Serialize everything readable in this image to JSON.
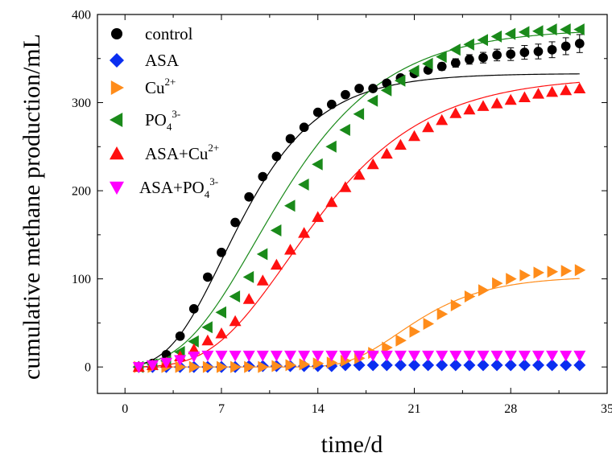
{
  "chart_data": {
    "type": "scatter",
    "xlabel": "time/d",
    "ylabel": "cumulative methane production/mL",
    "xlim": [
      -2,
      35
    ],
    "ylim": [
      -30,
      400
    ],
    "xticks": [
      "0",
      "7",
      "14",
      "21",
      "28",
      "35"
    ],
    "yticks": [
      "0",
      "100",
      "200",
      "300",
      "400"
    ],
    "legend_position": "top-left",
    "x": [
      1,
      2,
      3,
      4,
      5,
      6,
      7,
      8,
      9,
      10,
      11,
      12,
      13,
      14,
      15,
      16,
      17,
      18,
      19,
      20,
      21,
      22,
      23,
      24,
      25,
      26,
      27,
      28,
      29,
      30,
      31,
      32,
      33
    ],
    "series": [
      {
        "name": "control",
        "legend_main": "control",
        "legend_sup": "",
        "legend_sub": "",
        "marker": "circle",
        "color": "#000000",
        "values": [
          0,
          4,
          14,
          35,
          66,
          102,
          130,
          164,
          193,
          216,
          239,
          259,
          272,
          289,
          298,
          309,
          316,
          316,
          322,
          328,
          333,
          337,
          341,
          345,
          349,
          351,
          354,
          355,
          357,
          358,
          360,
          364,
          367
        ],
        "fit": {
          "a": 333,
          "mu": 31.8,
          "lambda": 3.2
        }
      },
      {
        "name": "ASA",
        "legend_main": "ASA",
        "legend_sup": "",
        "legend_sub": "",
        "marker": "diamond",
        "color": "#0a2ef0",
        "values": [
          0,
          0,
          0,
          0,
          0,
          0,
          0,
          0,
          1,
          1,
          1,
          1,
          1,
          1,
          1,
          2,
          2,
          2,
          2,
          2,
          2,
          2,
          2,
          2,
          2,
          2,
          2,
          2,
          2,
          2,
          2,
          2,
          2
        ]
      },
      {
        "name": "Cu2+",
        "legend_main": "Cu",
        "legend_sup": "2+",
        "legend_sub": "",
        "marker": "triangle-right",
        "color": "#ff8c1a",
        "values": [
          0,
          0,
          0,
          0,
          0,
          0,
          0,
          0,
          0,
          0,
          1,
          2,
          3,
          4,
          5,
          7,
          10,
          16,
          22,
          30,
          40,
          49,
          60,
          70,
          80,
          87,
          95,
          100,
          104,
          107,
          108,
          109,
          110
        ],
        "fit": {
          "a": 103,
          "mu": 10.5,
          "lambda": 16.2
        }
      },
      {
        "name": "PO43-",
        "legend_main": "PO",
        "legend_sup": "3-",
        "legend_sub": "4",
        "marker": "triangle-left",
        "color": "#1a8a1a",
        "values": [
          0,
          3,
          7,
          17,
          29,
          45,
          62,
          80,
          102,
          128,
          155,
          183,
          207,
          230,
          250,
          269,
          287,
          302,
          314,
          325,
          336,
          344,
          352,
          360,
          366,
          371,
          375,
          378,
          380,
          381,
          383,
          383,
          383
        ],
        "fit": {
          "a": 384,
          "mu": 27,
          "lambda": 4.2
        }
      },
      {
        "name": "ASA+Cu2+",
        "legend_main": "ASA+Cu",
        "legend_sup": "2+",
        "legend_sub": "",
        "marker": "triangle-up",
        "color": "#ff1010",
        "values": [
          0,
          2,
          5,
          12,
          20,
          30,
          38,
          52,
          77,
          98,
          116,
          133,
          152,
          170,
          187,
          204,
          218,
          230,
          242,
          252,
          262,
          272,
          280,
          288,
          292,
          296,
          299,
          303,
          306,
          310,
          312,
          314,
          316
        ],
        "fit": {
          "a": 330,
          "mu": 22,
          "lambda": 6.3
        }
      },
      {
        "name": "ASA+PO43-",
        "legend_main": "ASA+PO",
        "legend_sup": "3-",
        "legend_sub": "4",
        "marker": "triangle-down",
        "color": "#ff00ff",
        "values": [
          0,
          2,
          5,
          8,
          12,
          13,
          13,
          13,
          13,
          13,
          13,
          13,
          13,
          13,
          13,
          13,
          13,
          13,
          13,
          13,
          13,
          13,
          13,
          13,
          13,
          13,
          13,
          13,
          13,
          13,
          13,
          13,
          13
        ]
      }
    ]
  }
}
